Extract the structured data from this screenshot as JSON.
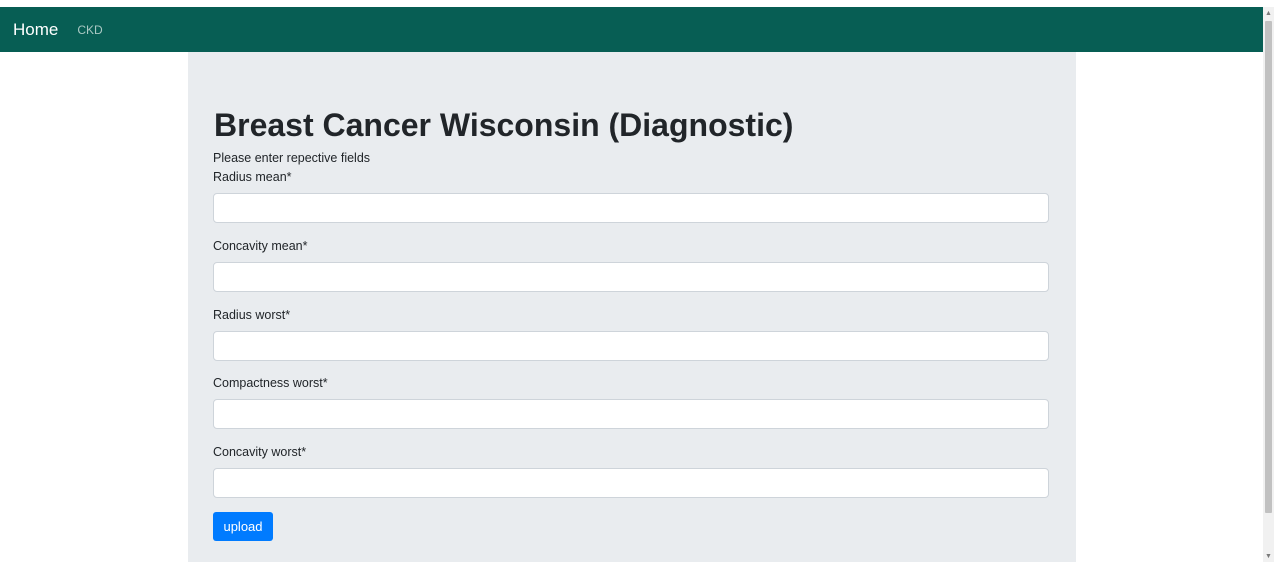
{
  "navbar": {
    "brand": "Home",
    "links": [
      "CKD"
    ],
    "background": "#075e54"
  },
  "main": {
    "title": "Breast Cancer Wisconsin (Diagnostic)",
    "subtitle": "Please enter repective fields",
    "fields": [
      {
        "label": "Radius mean*",
        "value": ""
      },
      {
        "label": "Concavity mean*",
        "value": ""
      },
      {
        "label": "Radius worst*",
        "value": ""
      },
      {
        "label": "Compactness worst*",
        "value": ""
      },
      {
        "label": "Concavity worst*",
        "value": ""
      }
    ],
    "submit_label": "upload",
    "accent": "#007bff"
  },
  "icons": {
    "scroll_up": "triangle-up-icon",
    "scroll_down": "triangle-down-icon"
  }
}
